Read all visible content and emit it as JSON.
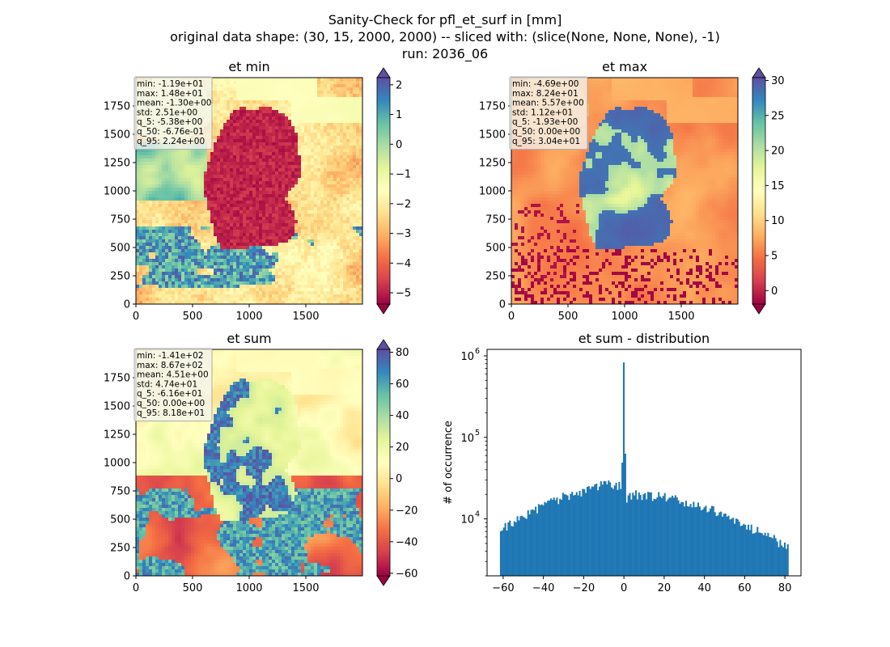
{
  "figure": {
    "title_lines": [
      "Sanity-Check for pfl_et_surf in [mm]",
      "original data shape: (30, 15, 2000, 2000) -- sliced with: (slice(None, None, None), -1)",
      "run: 2036_06"
    ]
  },
  "chart_data": [
    {
      "type": "heatmap",
      "title": "et min",
      "xlabel": "",
      "ylabel": "",
      "xlim": [
        0,
        2000
      ],
      "ylim": [
        0,
        2000
      ],
      "xticks": [
        "0",
        "500",
        "1000",
        "1500"
      ],
      "yticks": [
        "0",
        "250",
        "500",
        "750",
        "1000",
        "1250",
        "1500",
        "1750"
      ],
      "colormap": "Spectral",
      "colorbar": {
        "vmin": -5.38,
        "vmax": 2.24,
        "extend": "both",
        "ticks": [
          2,
          1,
          0,
          -1,
          -2,
          -3,
          -4,
          -5
        ],
        "tick_labels": [
          "2",
          "1",
          "0",
          "−1",
          "−2",
          "−3",
          "−4",
          "−5"
        ]
      },
      "stats": [
        "min: -1.19e+01",
        "max: 1.48e+01",
        "mean: -1.30e+00",
        "std: 2.51e+00",
        "q_5: -5.38e+00",
        "q_50: -6.76e-01",
        "q_95: 2.24e+00"
      ]
    },
    {
      "type": "heatmap",
      "title": "et max",
      "xlabel": "",
      "ylabel": "",
      "xlim": [
        0,
        2000
      ],
      "ylim": [
        0,
        2000
      ],
      "xticks": [
        "0",
        "500",
        "1000",
        "1500"
      ],
      "yticks": [
        "0",
        "250",
        "500",
        "750",
        "1000",
        "1250",
        "1500",
        "1750"
      ],
      "colormap": "Spectral",
      "colorbar": {
        "vmin": -1.93,
        "vmax": 30.4,
        "extend": "both",
        "ticks": [
          30,
          25,
          20,
          15,
          10,
          5,
          0
        ],
        "tick_labels": [
          "30",
          "25",
          "20",
          "15",
          "10",
          "5",
          "0"
        ]
      },
      "stats": [
        "min: -4.69e+00",
        "max: 8.24e+01",
        "mean: 5.57e+00",
        "std: 1.12e+01",
        "q_5: -1.93e+00",
        "q_50: 0.00e+00",
        "q_95: 3.04e+01"
      ]
    },
    {
      "type": "heatmap",
      "title": "et sum",
      "xlabel": "",
      "ylabel": "",
      "xlim": [
        0,
        2000
      ],
      "ylim": [
        0,
        2000
      ],
      "xticks": [
        "0",
        "500",
        "1000",
        "1500"
      ],
      "yticks": [
        "0",
        "250",
        "500",
        "750",
        "1000",
        "1250",
        "1500",
        "1750"
      ],
      "colormap": "Spectral",
      "colorbar": {
        "vmin": -61.6,
        "vmax": 81.8,
        "extend": "both",
        "ticks": [
          80,
          60,
          40,
          20,
          0,
          -20,
          -40,
          -60
        ],
        "tick_labels": [
          "80",
          "60",
          "40",
          "20",
          "0",
          "−20",
          "−40",
          "−60"
        ]
      },
      "stats": [
        "min: -1.41e+02",
        "max: 8.67e+02",
        "mean: 4.51e+00",
        "std: 4.74e+01",
        "q_5: -6.16e+01",
        "q_50: 0.00e+00",
        "q_95: 8.18e+01"
      ]
    },
    {
      "type": "bar",
      "title": "et sum - distribution",
      "xlabel": "",
      "ylabel": "# of occurrence",
      "xlim": [
        -68,
        88
      ],
      "ylim": [
        2000,
        1200000
      ],
      "yscale": "log",
      "xticks": [
        -60,
        -40,
        -20,
        0,
        20,
        40,
        60,
        80
      ],
      "xtick_labels": [
        "−60",
        "−40",
        "−20",
        "0",
        "20",
        "40",
        "60",
        "80"
      ],
      "yticks": [
        10000,
        100000,
        1000000
      ],
      "ytick_labels": [
        "10",
        "10",
        "10"
      ],
      "ytick_exponents": [
        "4",
        "5",
        "6"
      ],
      "color": "#1f77b4",
      "bin_range": [
        -61.6,
        81.8
      ],
      "anchor_counts": [
        [
          -61.6,
          6300
        ],
        [
          -60,
          7500
        ],
        [
          -55,
          9000
        ],
        [
          -50,
          11000
        ],
        [
          -45,
          12500
        ],
        [
          -40,
          14500
        ],
        [
          -35,
          16500
        ],
        [
          -30,
          18500
        ],
        [
          -25,
          20000
        ],
        [
          -20,
          22000
        ],
        [
          -15,
          24000
        ],
        [
          -10,
          26000
        ],
        [
          -5,
          26500
        ],
        [
          -1,
          26000
        ],
        [
          0,
          830000
        ],
        [
          1,
          17000
        ],
        [
          5,
          20000
        ],
        [
          10,
          19500
        ],
        [
          15,
          19000
        ],
        [
          20,
          18500
        ],
        [
          25,
          17500
        ],
        [
          30,
          16000
        ],
        [
          35,
          15000
        ],
        [
          40,
          13500
        ],
        [
          45,
          12500
        ],
        [
          50,
          11000
        ],
        [
          55,
          9500
        ],
        [
          60,
          8500
        ],
        [
          65,
          7500
        ],
        [
          70,
          6500
        ],
        [
          75,
          5500
        ],
        [
          80,
          4600
        ],
        [
          81.8,
          4300
        ]
      ]
    }
  ]
}
